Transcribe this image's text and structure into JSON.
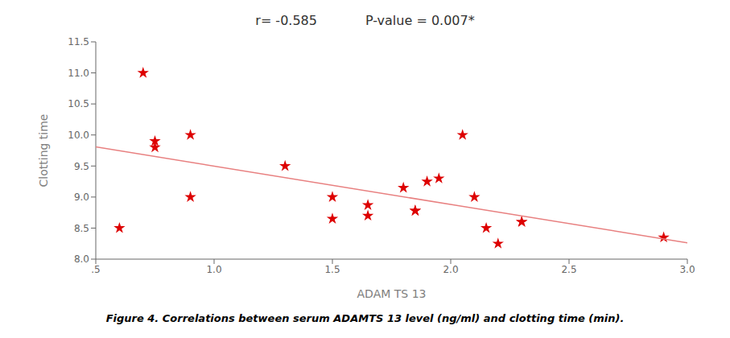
{
  "chart_data": {
    "type": "scatter",
    "xlabel": "ADAM TS 13",
    "ylabel": "Clotting time",
    "annotations": [
      "r= -0.585",
      "P-value = 0.007*"
    ],
    "caption": "Figure 4. Correlations between serum ADAMTS 13 level (ng/ml) and clotting time (min).",
    "xlim": [
      0.5,
      3.0
    ],
    "ylim": [
      8.0,
      11.5
    ],
    "xticks": [
      {
        "value": 0.5,
        "label": ".5"
      },
      {
        "value": 1.0,
        "label": "1.0"
      },
      1.5,
      {
        "value": 2.0,
        "label": "2.0"
      },
      2.5,
      {
        "value": 3.0,
        "label": "3.0"
      }
    ],
    "yticks": [
      {
        "value": 8.0,
        "label": "8.0"
      },
      8.5,
      {
        "value": 9.0,
        "label": "9.0"
      },
      9.5,
      {
        "value": 10.0,
        "label": "10.0"
      },
      10.5,
      {
        "value": 11.0,
        "label": "11.0"
      },
      11.5
    ],
    "grid": false,
    "series": [
      {
        "type": "scatter",
        "color": "#dd0000",
        "marker": "star",
        "x": [
          0.6,
          0.7,
          0.75,
          0.75,
          0.9,
          0.9,
          1.3,
          1.5,
          1.5,
          1.65,
          1.65,
          1.8,
          1.85,
          1.85,
          1.9,
          1.95,
          2.05,
          2.1,
          2.15,
          2.2,
          2.3,
          2.3,
          2.9
        ],
        "values": [
          8.5,
          11.0,
          9.8,
          9.9,
          10.0,
          9.0,
          9.5,
          9.0,
          8.65,
          8.7,
          8.87,
          9.15,
          8.78,
          8.78,
          9.25,
          9.3,
          10.0,
          9.0,
          8.5,
          8.25,
          8.6,
          8.6,
          8.35
        ]
      },
      {
        "type": "line",
        "color": "#e88080",
        "x": [
          0.5,
          3.0
        ],
        "values": [
          9.8073,
          8.2633
        ]
      }
    ]
  }
}
